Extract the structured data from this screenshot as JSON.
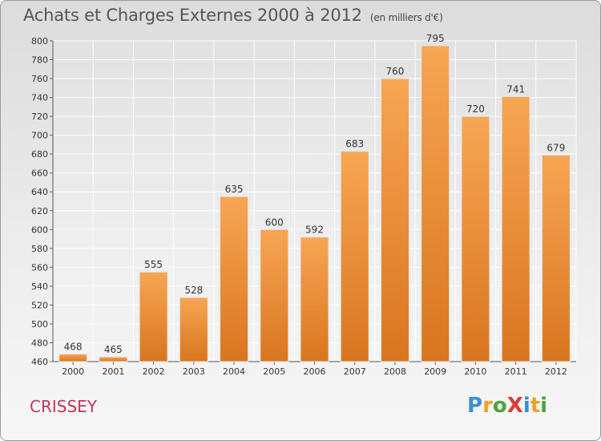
{
  "title": "Achats et Charges Externes 2000 à 2012",
  "subtitle": "(en milliers d'€)",
  "commune": "CRISSEY",
  "logo": {
    "letters": [
      {
        "char": "P",
        "color": "#3a8fd6"
      },
      {
        "char": "r",
        "color": "#f2a020"
      },
      {
        "char": "o",
        "color": "#4aa53a"
      },
      {
        "char": "X",
        "color": "#e03a3a"
      },
      {
        "char": "i",
        "color": "#3a8fd6"
      },
      {
        "char": "t",
        "color": "#f2a020"
      },
      {
        "char": "i",
        "color": "#4aa53a"
      }
    ]
  },
  "chart_data": {
    "type": "bar",
    "categories": [
      "2000",
      "2001",
      "2002",
      "2003",
      "2004",
      "2005",
      "2006",
      "2007",
      "2008",
      "2009",
      "2010",
      "2011",
      "2012"
    ],
    "values": [
      468,
      465,
      555,
      528,
      635,
      600,
      592,
      683,
      760,
      795,
      720,
      741,
      679
    ],
    "ylim": [
      460,
      800
    ],
    "yticks": [
      460,
      480,
      500,
      520,
      540,
      560,
      580,
      600,
      620,
      640,
      660,
      680,
      700,
      720,
      740,
      760,
      780,
      800
    ],
    "grid": true,
    "bar_color_top": "#f7a654",
    "bar_color_bottom": "#d9751f",
    "xlabel": "",
    "ylabel": ""
  }
}
